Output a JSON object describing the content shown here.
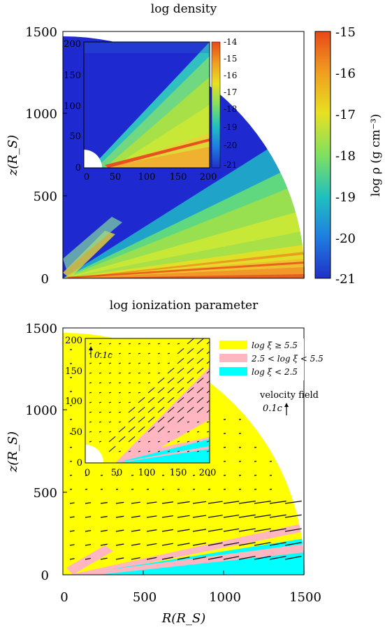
{
  "chart_data": [
    {
      "type": "heatmap",
      "title": "log density",
      "xlabel": "",
      "ylabel": "z(R_S)",
      "xlim": [
        0,
        1500
      ],
      "ylim": [
        0,
        1500
      ],
      "yticks": [
        "0",
        "500",
        "1000",
        "1500"
      ],
      "colorbar": {
        "label": "log ρ (g cm⁻³)",
        "range": [
          -21,
          -15
        ],
        "ticks": [
          "-15",
          "-16",
          "-17",
          "-18",
          "-19",
          "-20",
          "-21"
        ],
        "colors": [
          "#2030c8",
          "#1f7fe0",
          "#20c0c0",
          "#80e060",
          "#e8e020",
          "#f0a020",
          "#e84818"
        ]
      },
      "domain": {
        "outer_radius": 1500,
        "polar_angle_deg": [
          0,
          90
        ]
      },
      "features": [
        {
          "name": "dense disk",
          "value": -15.5,
          "angle_deg": [
            0,
            3
          ]
        },
        {
          "name": "outflow",
          "value": -17.5,
          "angle_deg": [
            3,
            30
          ]
        },
        {
          "name": "low-density funnel",
          "value": -20.5,
          "angle_deg": [
            40,
            90
          ]
        }
      ],
      "inset": {
        "xlim": [
          0,
          200
        ],
        "ylim": [
          0,
          200
        ],
        "xticks": [
          "0",
          "50",
          "100",
          "150",
          "200"
        ],
        "yticks": [
          "0",
          "50",
          "100",
          "150",
          "200"
        ],
        "colorbar_ticks": [
          "-14",
          "-15",
          "-16",
          "-17",
          "-18",
          "-19",
          "-20",
          "-21"
        ]
      }
    },
    {
      "type": "heatmap",
      "title": "log ionization parameter",
      "xlabel": "R(R_S)",
      "ylabel": "z(R_S)",
      "xlim": [
        0,
        1500
      ],
      "ylim": [
        0,
        1500
      ],
      "xticks": [
        "0",
        "500",
        "1000",
        "1500"
      ],
      "yticks": [
        "0",
        "500",
        "1000",
        "1500"
      ],
      "legend_position": "top-right",
      "legend": [
        {
          "label": "log ξ ≥ 5.5",
          "color": "#ffff00"
        },
        {
          "label": "2.5 < log ξ < 5.5",
          "color": "#ffb6c1"
        },
        {
          "label": "log ξ < 2.5",
          "color": "#00ffff"
        }
      ],
      "velocity_key": {
        "label": "velocity field",
        "scale": "0.1c"
      },
      "inset": {
        "xlim": [
          0,
          200
        ],
        "ylim": [
          0,
          200
        ],
        "xticks": [
          "0",
          "50",
          "100",
          "150",
          "200"
        ],
        "yticks": [
          "0",
          "50",
          "100",
          "150",
          "200"
        ],
        "velocity_key": "0.1c"
      }
    }
  ]
}
